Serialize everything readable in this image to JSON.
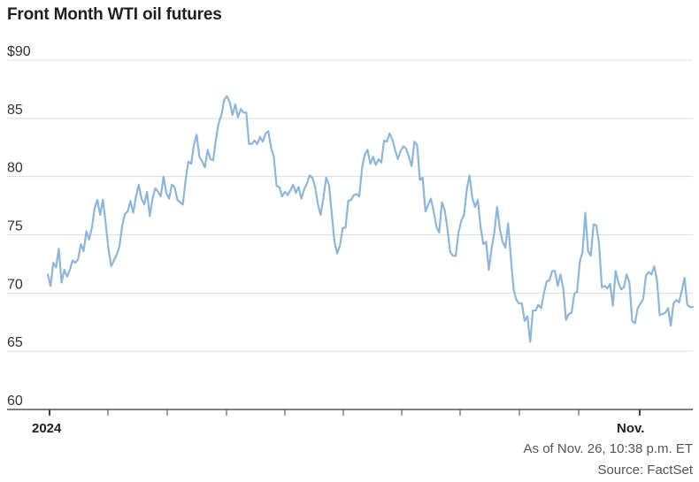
{
  "chart_data": {
    "type": "line",
    "title": "Front Month WTI oil futures",
    "y_ticks": [
      "$90",
      "85",
      "80",
      "75",
      "70",
      "65",
      "60"
    ],
    "y_tick_values": [
      90,
      85,
      80,
      75,
      70,
      65,
      60
    ],
    "ylim": [
      60,
      90
    ],
    "x_tick_labels": [
      "2024",
      "Nov."
    ],
    "grid": "horizontal",
    "line_color": "#8db6dc",
    "series": [
      {
        "values": [
          71.6,
          70.6,
          72.6,
          72.2,
          73.8,
          70.9,
          72.0,
          71.4,
          72.0,
          72.8,
          72.6,
          72.9,
          74.2,
          73.6,
          75.3,
          74.6,
          75.6,
          77.3,
          78.0,
          76.7,
          78.0,
          76.0,
          73.8,
          72.3,
          72.8,
          73.3,
          74.0,
          75.8,
          76.8,
          77.0,
          77.9,
          76.9,
          78.3,
          79.3,
          78.1,
          77.6,
          78.7,
          76.6,
          78.1,
          79.0,
          78.7,
          78.3,
          80.0,
          78.6,
          78.1,
          79.3,
          79.1,
          78.0,
          77.8,
          77.6,
          79.7,
          81.3,
          81.1,
          82.7,
          83.6,
          81.7,
          81.3,
          80.8,
          82.3,
          81.5,
          81.4,
          83.2,
          84.6,
          85.3,
          86.6,
          86.9,
          86.4,
          85.3,
          86.2,
          85.1,
          85.8,
          85.5,
          85.5,
          82.8,
          82.8,
          83.1,
          82.8,
          83.4,
          83.0,
          83.7,
          83.9,
          82.5,
          81.7,
          79.2,
          79.1,
          78.3,
          78.7,
          78.4,
          78.8,
          79.3,
          78.6,
          79.1,
          78.1,
          78.9,
          79.4,
          80.1,
          79.9,
          79.1,
          77.6,
          76.7,
          78.2,
          79.9,
          79.3,
          76.9,
          74.4,
          73.4,
          74.1,
          75.6,
          75.6,
          77.9,
          78.0,
          78.4,
          78.5,
          78.3,
          80.7,
          81.9,
          82.3,
          81.1,
          81.7,
          81.0,
          81.5,
          81.2,
          83.1,
          83.0,
          83.7,
          83.2,
          82.3,
          81.5,
          82.2,
          82.6,
          82.4,
          81.7,
          80.9,
          83.0,
          82.7,
          79.7,
          79.9,
          77.0,
          77.6,
          78.1,
          77.0,
          75.7,
          75.2,
          77.8,
          77.1,
          75.5,
          73.5,
          73.2,
          73.2,
          75.2,
          76.2,
          76.7,
          78.9,
          80.1,
          78.2,
          77.4,
          78.0,
          75.7,
          74.2,
          74.4,
          72.0,
          73.8,
          75.2,
          77.4,
          75.5,
          74.4,
          73.9,
          76.0,
          73.0,
          70.3,
          69.4,
          69.1,
          69.1,
          67.6,
          68.0,
          65.8,
          68.5,
          68.5,
          69.0,
          68.7,
          70.0,
          71.0,
          71.1,
          71.9,
          71.9,
          70.6,
          71.6,
          70.4,
          67.7,
          68.2,
          68.3,
          69.9,
          70.1,
          72.7,
          73.5,
          76.9,
          73.6,
          73.2,
          75.9,
          75.8,
          74.2,
          70.5,
          70.6,
          70.4,
          70.8,
          68.9,
          71.9,
          70.9,
          70.3,
          70.5,
          71.6,
          70.9,
          67.6,
          67.4,
          68.7,
          69.1,
          69.5,
          71.5,
          71.8,
          71.6,
          72.3,
          71.1,
          68.1,
          68.2,
          68.3,
          68.7,
          67.2,
          69.1,
          69.4,
          69.2,
          70.2,
          71.3,
          69.0,
          68.8,
          68.8
        ]
      }
    ]
  },
  "footer": {
    "as_of": "As of Nov. 26, 10:38 p.m. ET",
    "source": "Source: FactSet"
  }
}
